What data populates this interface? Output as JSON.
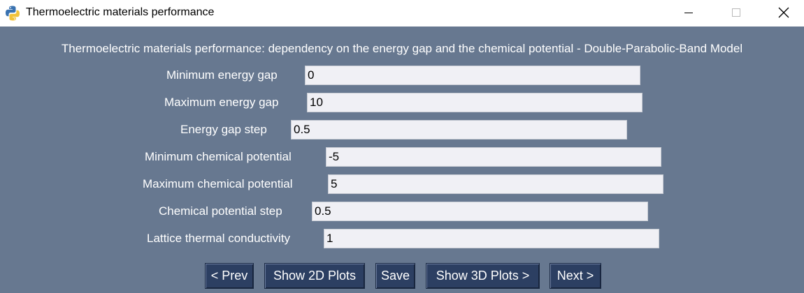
{
  "window": {
    "title": "Thermoelectric materials performance",
    "icon": "python-icon",
    "controls": [
      "minimize-icon",
      "maximize-icon",
      "close-icon"
    ]
  },
  "heading": "Thermoelectric materials performance: dependency on the energy gap and the chemical potential - Double-Parabolic-Band Model",
  "fields": [
    {
      "label": "Minimum energy gap",
      "value": "0"
    },
    {
      "label": "Maximum energy gap",
      "value": "10"
    },
    {
      "label": "Energy gap step",
      "value": "0.5"
    },
    {
      "label": "Minimum chemical potential",
      "value": "-5"
    },
    {
      "label": "Maximum chemical potential",
      "value": "5"
    },
    {
      "label": "Chemical potential step",
      "value": "0.5"
    },
    {
      "label": "Lattice thermal conductivity",
      "value": "1"
    }
  ],
  "buttons": {
    "prev": "< Prev",
    "show_2d": "Show 2D Plots",
    "save": "Save",
    "show_3d": "Show 3D Plots >",
    "next": "Next >"
  },
  "colors": {
    "background": "#677890",
    "button": "#2c3f62",
    "input": "#f0f0f5"
  }
}
